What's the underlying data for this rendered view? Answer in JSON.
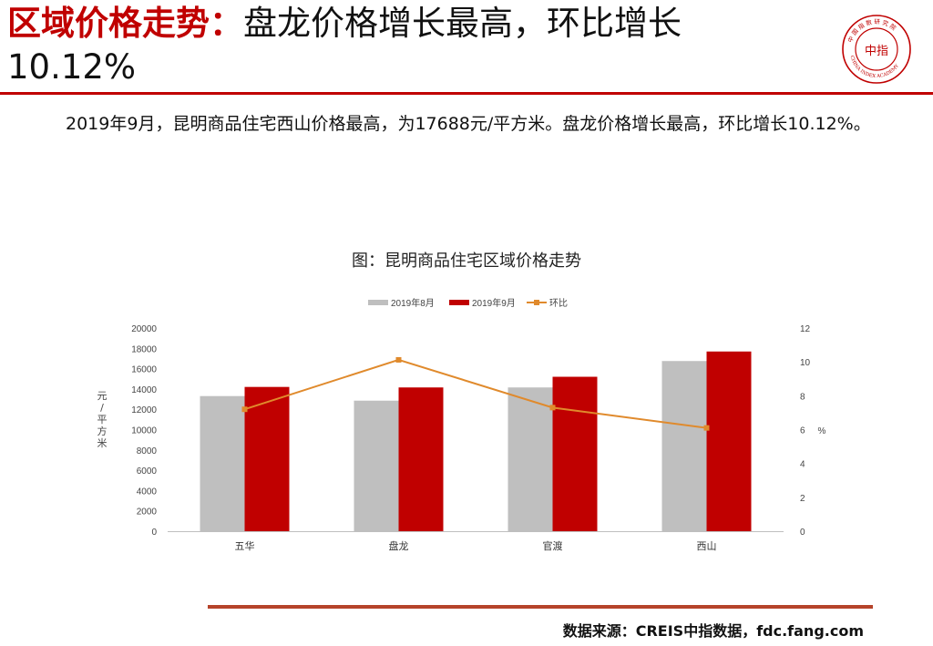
{
  "header": {
    "title_red": "区域价格走势：",
    "title_black": "盘龙价格增长最高，环比增长",
    "title_line2": "10.12%"
  },
  "logo": {
    "icon": "china-index-academy-seal-icon",
    "text": "中指",
    "ring_text": "中国指数研究院 CHINA INDEX ACADEMY",
    "color": "#c00000"
  },
  "summary": {
    "text": "2019年9月，昆明商品住宅西山价格最高，为17688元/平方米。盘龙价格增长最高，环比增长10.12%。"
  },
  "chart_title": "图：昆明商品住宅区域价格走势",
  "chart_data": {
    "type": "bar",
    "categories": [
      "五华",
      "盘龙",
      "官渡",
      "西山"
    ],
    "series": [
      {
        "name": "2019年8月",
        "type": "bar",
        "axis": "left",
        "color": "#bfbfbf",
        "values": [
          13300,
          12850,
          14150,
          16750
        ]
      },
      {
        "name": "2019年9月",
        "type": "bar",
        "axis": "left",
        "color": "#c00000",
        "values": [
          14200,
          14150,
          15200,
          17688
        ]
      },
      {
        "name": "环比",
        "type": "line",
        "axis": "right",
        "color": "#e08a2c",
        "values": [
          7.2,
          10.12,
          7.3,
          6.1
        ]
      }
    ],
    "ylabel": "元/平方米",
    "y2label": "%",
    "ylim": [
      0,
      20000
    ],
    "yticks": [
      "0",
      "2000",
      "4000",
      "6000",
      "8000",
      "10000",
      "12000",
      "14000",
      "16000",
      "18000",
      "20000"
    ],
    "y2lim": [
      0,
      12
    ],
    "y2ticks": [
      "0",
      "2",
      "4",
      "6",
      "8",
      "10",
      "12"
    ],
    "legend_position": "top",
    "grid": false
  },
  "footer": {
    "source": "数据来源：CREIS中指数据，fdc.fang.com"
  }
}
